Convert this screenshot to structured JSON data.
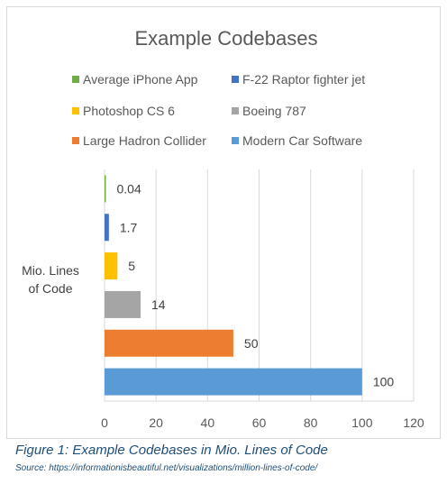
{
  "chart_data": {
    "type": "bar",
    "orientation": "horizontal",
    "title": "Example Codebases",
    "ylabel": "Mio. Lines\nof Code",
    "xlabel": "",
    "xlim": [
      0,
      120
    ],
    "xticks": [
      0,
      20,
      40,
      60,
      80,
      100,
      120
    ],
    "grid": "vertical",
    "legend_position": "top",
    "categories": [
      "Average iPhone App",
      "F-22 Raptor fighter jet",
      "Photoshop CS 6",
      "Boeing 787",
      "Large Hadron Collider",
      "Modern Car Software"
    ],
    "values": [
      0.04,
      1.7,
      5,
      14,
      50,
      100
    ],
    "data_labels": [
      "0.04",
      "1.7",
      "5",
      "14",
      "50",
      "100"
    ],
    "colors": [
      "#70ad47",
      "#4472c4",
      "#ffc000",
      "#a5a5a5",
      "#ed7d31",
      "#5b9bd5"
    ]
  },
  "caption": {
    "figure": "Figure 1: Example Codebases in Mio. Lines of Code",
    "source": "Source: https://informationisbeautiful.net/visualizations/million-lines-of-code/"
  }
}
